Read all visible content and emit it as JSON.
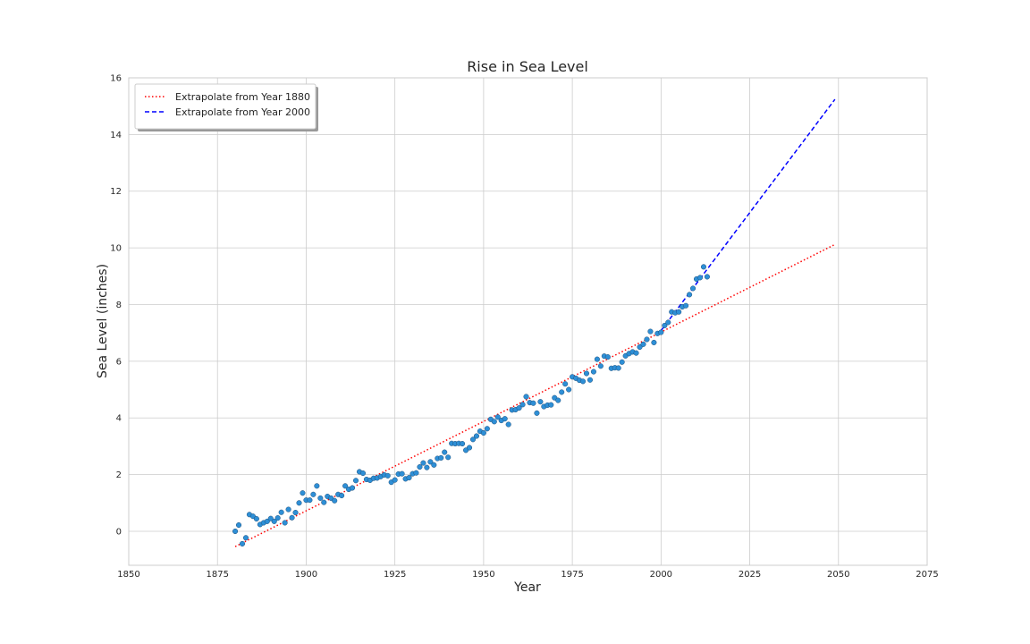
{
  "chart_data": {
    "type": "scatter",
    "title": "Rise in Sea Level",
    "xlabel": "Year",
    "ylabel": "Sea Level (inches)",
    "xlim": [
      1850,
      2075
    ],
    "ylim": [
      -1.2,
      16
    ],
    "xticks": [
      1850,
      1875,
      1900,
      1925,
      1950,
      1975,
      2000,
      2025,
      2050,
      2075
    ],
    "yticks": [
      0,
      2,
      4,
      6,
      8,
      10,
      12,
      14,
      16
    ],
    "grid": true,
    "legend_position": "top-left",
    "scatter": {
      "color": "#2e8fd6",
      "points": [
        [
          1880,
          0.0
        ],
        [
          1881,
          0.22
        ],
        [
          1882,
          -0.44
        ],
        [
          1883,
          -0.23
        ],
        [
          1884,
          0.59
        ],
        [
          1885,
          0.53
        ],
        [
          1886,
          0.44
        ],
        [
          1887,
          0.24
        ],
        [
          1888,
          0.3
        ],
        [
          1889,
          0.35
        ],
        [
          1890,
          0.45
        ],
        [
          1891,
          0.35
        ],
        [
          1892,
          0.47
        ],
        [
          1893,
          0.67
        ],
        [
          1894,
          0.3
        ],
        [
          1895,
          0.77
        ],
        [
          1896,
          0.48
        ],
        [
          1897,
          0.66
        ],
        [
          1898,
          1.0
        ],
        [
          1899,
          1.35
        ],
        [
          1900,
          1.1
        ],
        [
          1901,
          1.1
        ],
        [
          1902,
          1.3
        ],
        [
          1903,
          1.6
        ],
        [
          1904,
          1.17
        ],
        [
          1905,
          1.02
        ],
        [
          1906,
          1.23
        ],
        [
          1907,
          1.17
        ],
        [
          1908,
          1.08
        ],
        [
          1909,
          1.3
        ],
        [
          1910,
          1.26
        ],
        [
          1911,
          1.6
        ],
        [
          1912,
          1.48
        ],
        [
          1913,
          1.53
        ],
        [
          1914,
          1.79
        ],
        [
          1915,
          2.1
        ],
        [
          1916,
          2.05
        ],
        [
          1917,
          1.83
        ],
        [
          1918,
          1.8
        ],
        [
          1919,
          1.87
        ],
        [
          1920,
          1.88
        ],
        [
          1921,
          1.93
        ],
        [
          1922,
          1.99
        ],
        [
          1923,
          1.96
        ],
        [
          1924,
          1.73
        ],
        [
          1925,
          1.81
        ],
        [
          1926,
          2.02
        ],
        [
          1927,
          2.03
        ],
        [
          1928,
          1.85
        ],
        [
          1929,
          1.89
        ],
        [
          1930,
          2.03
        ],
        [
          1931,
          2.06
        ],
        [
          1932,
          2.27
        ],
        [
          1933,
          2.41
        ],
        [
          1934,
          2.25
        ],
        [
          1935,
          2.45
        ],
        [
          1936,
          2.34
        ],
        [
          1937,
          2.57
        ],
        [
          1938,
          2.59
        ],
        [
          1939,
          2.79
        ],
        [
          1940,
          2.61
        ],
        [
          1941,
          3.1
        ],
        [
          1942,
          3.09
        ],
        [
          1943,
          3.1
        ],
        [
          1944,
          3.09
        ],
        [
          1945,
          2.86
        ],
        [
          1946,
          2.95
        ],
        [
          1947,
          3.24
        ],
        [
          1948,
          3.36
        ],
        [
          1949,
          3.53
        ],
        [
          1950,
          3.47
        ],
        [
          1951,
          3.62
        ],
        [
          1952,
          3.95
        ],
        [
          1953,
          3.87
        ],
        [
          1954,
          4.03
        ],
        [
          1955,
          3.91
        ],
        [
          1956,
          3.97
        ],
        [
          1957,
          3.77
        ],
        [
          1958,
          4.28
        ],
        [
          1959,
          4.29
        ],
        [
          1960,
          4.35
        ],
        [
          1961,
          4.47
        ],
        [
          1962,
          4.75
        ],
        [
          1963,
          4.54
        ],
        [
          1964,
          4.52
        ],
        [
          1965,
          4.17
        ],
        [
          1966,
          4.57
        ],
        [
          1967,
          4.4
        ],
        [
          1968,
          4.45
        ],
        [
          1969,
          4.46
        ],
        [
          1970,
          4.71
        ],
        [
          1971,
          4.62
        ],
        [
          1972,
          4.91
        ],
        [
          1973,
          5.2
        ],
        [
          1974,
          5.0
        ],
        [
          1975,
          5.45
        ],
        [
          1976,
          5.4
        ],
        [
          1977,
          5.33
        ],
        [
          1978,
          5.29
        ],
        [
          1979,
          5.57
        ],
        [
          1980,
          5.34
        ],
        [
          1981,
          5.63
        ],
        [
          1982,
          6.07
        ],
        [
          1983,
          5.83
        ],
        [
          1984,
          6.18
        ],
        [
          1985,
          6.15
        ],
        [
          1986,
          5.75
        ],
        [
          1987,
          5.77
        ],
        [
          1988,
          5.76
        ],
        [
          1989,
          5.97
        ],
        [
          1990,
          6.19
        ],
        [
          1991,
          6.27
        ],
        [
          1992,
          6.33
        ],
        [
          1993,
          6.29
        ],
        [
          1994,
          6.5
        ],
        [
          1995,
          6.6
        ],
        [
          1996,
          6.77
        ],
        [
          1997,
          7.05
        ],
        [
          1998,
          6.66
        ],
        [
          1999,
          6.98
        ],
        [
          2000,
          7.02
        ],
        [
          2001,
          7.26
        ],
        [
          2002,
          7.37
        ],
        [
          2003,
          7.74
        ],
        [
          2004,
          7.71
        ],
        [
          2005,
          7.74
        ],
        [
          2006,
          7.92
        ],
        [
          2007,
          7.96
        ],
        [
          2008,
          8.35
        ],
        [
          2009,
          8.57
        ],
        [
          2010,
          8.9
        ],
        [
          2011,
          8.95
        ],
        [
          2012,
          9.33
        ],
        [
          2013,
          8.98
        ]
      ]
    },
    "series": [
      {
        "name": "Extrapolate from Year 1880",
        "color": "#ff0000",
        "style": "dotted",
        "x": [
          1880,
          2049
        ],
        "y": [
          -0.54,
          10.12
        ]
      },
      {
        "name": "Extrapolate from Year 2000",
        "color": "#0000ff",
        "style": "dashed",
        "x": [
          2000,
          2049
        ],
        "y": [
          7.08,
          15.24
        ]
      }
    ]
  }
}
